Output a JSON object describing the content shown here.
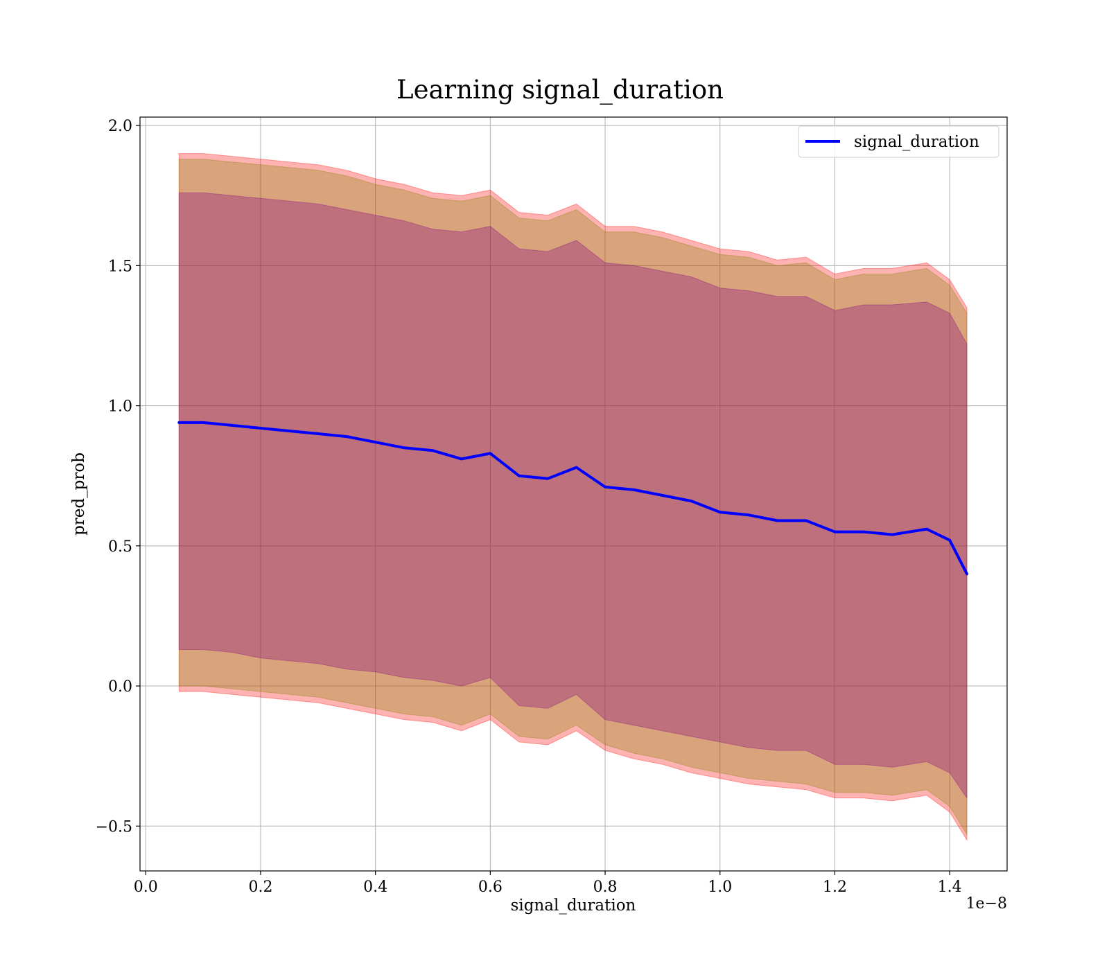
{
  "chart_data": {
    "type": "line",
    "title": "Learning signal_duration",
    "xlabel": "signal_duration",
    "ylabel": "pred_prob",
    "x_offset_label": "1e−8",
    "xlim": [
      -0.01,
      1.5
    ],
    "ylim": [
      -0.66,
      2.03
    ],
    "x_ticks": [
      0.0,
      0.2,
      0.4,
      0.6,
      0.8,
      1.0,
      1.2,
      1.4
    ],
    "x_tick_labels": [
      "0.0",
      "0.2",
      "0.4",
      "0.6",
      "0.8",
      "1.0",
      "1.2",
      "1.4"
    ],
    "y_ticks": [
      -0.5,
      0.0,
      0.5,
      1.0,
      1.5,
      2.0
    ],
    "y_tick_labels": [
      "−0.5",
      "0.0",
      "0.5",
      "1.0",
      "1.5",
      "2.0"
    ],
    "grid": true,
    "legend": {
      "position": "top-right",
      "entries": [
        "signal_duration"
      ]
    },
    "colors": {
      "line": "#0000ff",
      "outer_band": "#ff0000",
      "middle_band": "#808000",
      "inner_band": "#800080",
      "grid": "#b0b0b0"
    },
    "x": [
      0.058,
      0.1,
      0.15,
      0.2,
      0.25,
      0.3,
      0.35,
      0.4,
      0.45,
      0.5,
      0.55,
      0.6,
      0.65,
      0.7,
      0.75,
      0.8,
      0.85,
      0.9,
      0.95,
      1.0,
      1.05,
      1.1,
      1.15,
      1.2,
      1.25,
      1.3,
      1.36,
      1.4,
      1.43
    ],
    "series": [
      {
        "name": "signal_duration",
        "y": [
          0.94,
          0.94,
          0.93,
          0.92,
          0.91,
          0.9,
          0.89,
          0.87,
          0.85,
          0.84,
          0.81,
          0.83,
          0.75,
          0.74,
          0.78,
          0.71,
          0.7,
          0.68,
          0.66,
          0.62,
          0.61,
          0.59,
          0.59,
          0.55,
          0.55,
          0.54,
          0.56,
          0.52,
          0.4
        ]
      }
    ],
    "bands": [
      {
        "lower": [
          -0.02,
          -0.02,
          -0.03,
          -0.04,
          -0.05,
          -0.06,
          -0.08,
          -0.1,
          -0.12,
          -0.13,
          -0.16,
          -0.12,
          -0.2,
          -0.21,
          -0.16,
          -0.23,
          -0.26,
          -0.28,
          -0.31,
          -0.33,
          -0.35,
          -0.36,
          -0.37,
          -0.4,
          -0.4,
          -0.41,
          -0.39,
          -0.45,
          -0.55
        ],
        "upper": [
          1.9,
          1.9,
          1.89,
          1.88,
          1.87,
          1.86,
          1.84,
          1.81,
          1.79,
          1.76,
          1.75,
          1.77,
          1.69,
          1.68,
          1.72,
          1.64,
          1.64,
          1.62,
          1.59,
          1.56,
          1.55,
          1.52,
          1.53,
          1.47,
          1.49,
          1.49,
          1.51,
          1.45,
          1.35
        ]
      },
      {
        "lower": [
          0.0,
          0.0,
          -0.01,
          -0.02,
          -0.03,
          -0.04,
          -0.06,
          -0.08,
          -0.1,
          -0.11,
          -0.14,
          -0.1,
          -0.18,
          -0.19,
          -0.14,
          -0.21,
          -0.24,
          -0.26,
          -0.29,
          -0.31,
          -0.33,
          -0.34,
          -0.35,
          -0.38,
          -0.38,
          -0.39,
          -0.37,
          -0.43,
          -0.53
        ],
        "upper": [
          1.88,
          1.88,
          1.87,
          1.86,
          1.85,
          1.84,
          1.82,
          1.79,
          1.77,
          1.74,
          1.73,
          1.75,
          1.67,
          1.66,
          1.7,
          1.62,
          1.62,
          1.6,
          1.57,
          1.54,
          1.53,
          1.5,
          1.51,
          1.45,
          1.47,
          1.47,
          1.49,
          1.43,
          1.33
        ]
      },
      {
        "lower": [
          0.13,
          0.13,
          0.12,
          0.1,
          0.09,
          0.08,
          0.06,
          0.05,
          0.03,
          0.02,
          0.0,
          0.03,
          -0.07,
          -0.08,
          -0.03,
          -0.12,
          -0.14,
          -0.16,
          -0.18,
          -0.2,
          -0.22,
          -0.23,
          -0.23,
          -0.28,
          -0.28,
          -0.29,
          -0.27,
          -0.31,
          -0.4
        ],
        "upper": [
          1.76,
          1.76,
          1.75,
          1.74,
          1.73,
          1.72,
          1.7,
          1.68,
          1.66,
          1.63,
          1.62,
          1.64,
          1.56,
          1.55,
          1.59,
          1.51,
          1.5,
          1.48,
          1.46,
          1.42,
          1.41,
          1.39,
          1.39,
          1.34,
          1.36,
          1.36,
          1.37,
          1.33,
          1.22
        ]
      }
    ]
  }
}
